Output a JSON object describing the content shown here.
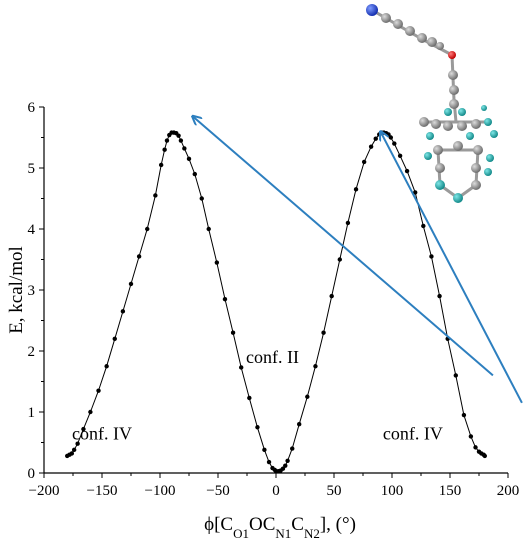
{
  "chart_data": {
    "type": "scatter",
    "xlabel_parts": {
      "prefix": "ϕ[C",
      "sub1": "O1",
      "mid1": "OC",
      "sub2": "N1",
      "mid2": "C",
      "sub3": "N2",
      "suffix": "], (°)"
    },
    "ylabel": "E, kcal/mol",
    "xlim": [
      -200,
      200
    ],
    "ylim": [
      0,
      6
    ],
    "x_ticks": [
      -200,
      -150,
      -100,
      -50,
      0,
      50,
      100,
      150,
      200
    ],
    "y_ticks": [
      0,
      1,
      2,
      3,
      4,
      5,
      6
    ],
    "annotations": [
      {
        "text": "conf. IV",
        "x": -150,
        "y": 0.55
      },
      {
        "text": "conf. II",
        "x": -3,
        "y": 1.8
      },
      {
        "text": "conf. IV",
        "x": 118,
        "y": 0.55
      }
    ],
    "arrows": [
      {
        "from": [
          187,
          1.6
        ],
        "to": [
          -72,
          5.85
        ]
      },
      {
        "from": [
          212,
          1.15
        ],
        "to": [
          90,
          5.6
        ]
      }
    ],
    "grid": false,
    "series": [
      {
        "x": [
          -180,
          -178,
          -176,
          -174,
          -171,
          -166,
          -160,
          -153,
          -146,
          -139,
          -132,
          -125,
          -118,
          -111,
          -104,
          -99,
          -96,
          -94,
          -92,
          -90,
          -88,
          -86,
          -84,
          -82,
          -79,
          -75,
          -70,
          -64,
          -58,
          -51,
          -44,
          -37,
          -30,
          -23,
          -16,
          -10,
          -6,
          -3,
          -1,
          0,
          2,
          4,
          6,
          8,
          10,
          14,
          20,
          27,
          34,
          41,
          48,
          55,
          62,
          69,
          76,
          82,
          86,
          89,
          91,
          93,
          95,
          97,
          99,
          102,
          107,
          113,
          120,
          127,
          134,
          141,
          148,
          155,
          162,
          168,
          172,
          175,
          177,
          179,
          180
        ],
        "y": [
          0.28,
          0.3,
          0.32,
          0.38,
          0.48,
          0.72,
          1.0,
          1.35,
          1.75,
          2.2,
          2.65,
          3.1,
          3.55,
          4.0,
          4.55,
          5.05,
          5.3,
          5.45,
          5.54,
          5.58,
          5.58,
          5.57,
          5.53,
          5.45,
          5.32,
          5.15,
          4.9,
          4.5,
          4.0,
          3.45,
          2.85,
          2.3,
          1.73,
          1.23,
          0.75,
          0.38,
          0.18,
          0.08,
          0.05,
          0.03,
          0.03,
          0.04,
          0.07,
          0.12,
          0.2,
          0.4,
          0.8,
          1.25,
          1.75,
          2.3,
          2.9,
          3.5,
          4.1,
          4.65,
          5.1,
          5.35,
          5.48,
          5.55,
          5.58,
          5.58,
          5.57,
          5.55,
          5.5,
          5.4,
          5.2,
          4.95,
          4.6,
          4.05,
          3.55,
          2.9,
          2.2,
          1.6,
          0.95,
          0.6,
          0.42,
          0.35,
          0.32,
          0.3,
          0.28
        ]
      }
    ]
  },
  "colors": {
    "line": "#000000",
    "point": "#000000",
    "arrow": "#2d7fbf",
    "molecule_gray": "#8c8c8c",
    "molecule_cyan": "#1fa8a8",
    "molecule_blue": "#1c3fd6",
    "molecule_red": "#e01010"
  }
}
